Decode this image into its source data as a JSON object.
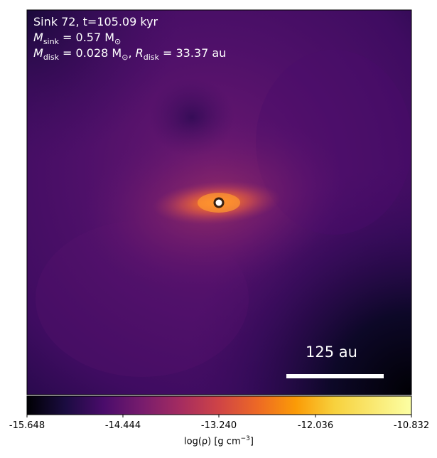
{
  "annotation": {
    "line1": "Sink 72, t=105.09 kyr",
    "msink_symbol": "M",
    "msink_sub": "sink",
    "msink_value": " = 0.57 M",
    "msun_sub": "⊙",
    "mdisk_symbol": "M",
    "mdisk_sub": "disk",
    "mdisk_value": " = 0.028 M",
    "rdisk_symbol": "R",
    "rdisk_sub": "disk",
    "rdisk_value": " = 33.37 au",
    "comma": ", "
  },
  "scale_bar": {
    "label": "125 au"
  },
  "colorbar": {
    "colormap": "inferno",
    "ticks": [
      "-15.648",
      "-14.444",
      "-13.240",
      "-12.036",
      "-10.832"
    ],
    "label_pre": "log(ρ) [g cm",
    "label_sup": "−3",
    "label_post": "]"
  },
  "colors": {
    "background_dark": "#3a0a5e",
    "core": "#ffffff",
    "ring": "#4a2a10"
  }
}
